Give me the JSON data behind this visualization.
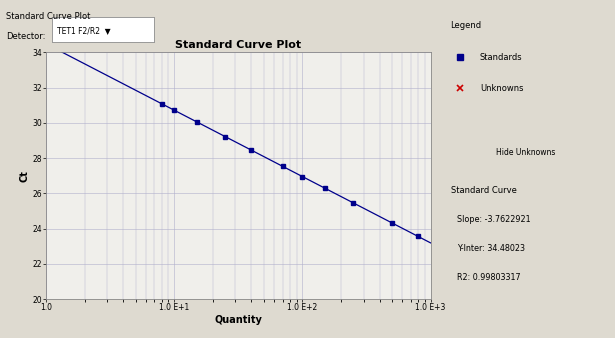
{
  "title": "Standard Curve Plot",
  "xlabel": "Quantity",
  "ylabel": "Ct",
  "slope": -3.7622921,
  "yinter": 34.48023,
  "r2": 0.99803317,
  "ylim": [
    20,
    34
  ],
  "x_data": [
    8,
    10,
    15,
    25,
    40,
    70,
    100,
    150,
    250,
    500,
    800
  ],
  "bg_color": "#dedad0",
  "plot_bg": "#f0efeb",
  "line_color": "#00008B",
  "point_color": "#00008B",
  "grid_color": "#b0b0cc",
  "header_bg": "#dedad0",
  "panel_bg": "#dedad0",
  "box_bg": "#f0efeb",
  "yticks": [
    20,
    22,
    24,
    26,
    28,
    30,
    32,
    34
  ],
  "xtick_positions": [
    1.0,
    10.0,
    100.0,
    1000.0
  ],
  "top_label": "Standard Curve Plot",
  "detector_label": "Detector:",
  "detector_value": "TET1 F2/R2",
  "legend_title": "Legend",
  "legend_standards": "Standards",
  "legend_unknowns": "Unknowns",
  "legend_hide_btn": "Hide Unknowns",
  "sc_title": "Standard Curve",
  "sc_slope": "Slope: -3.7622921",
  "sc_yinter": "Y-Inter: 34.48023",
  "sc_r2": "R2: 0.99803317"
}
